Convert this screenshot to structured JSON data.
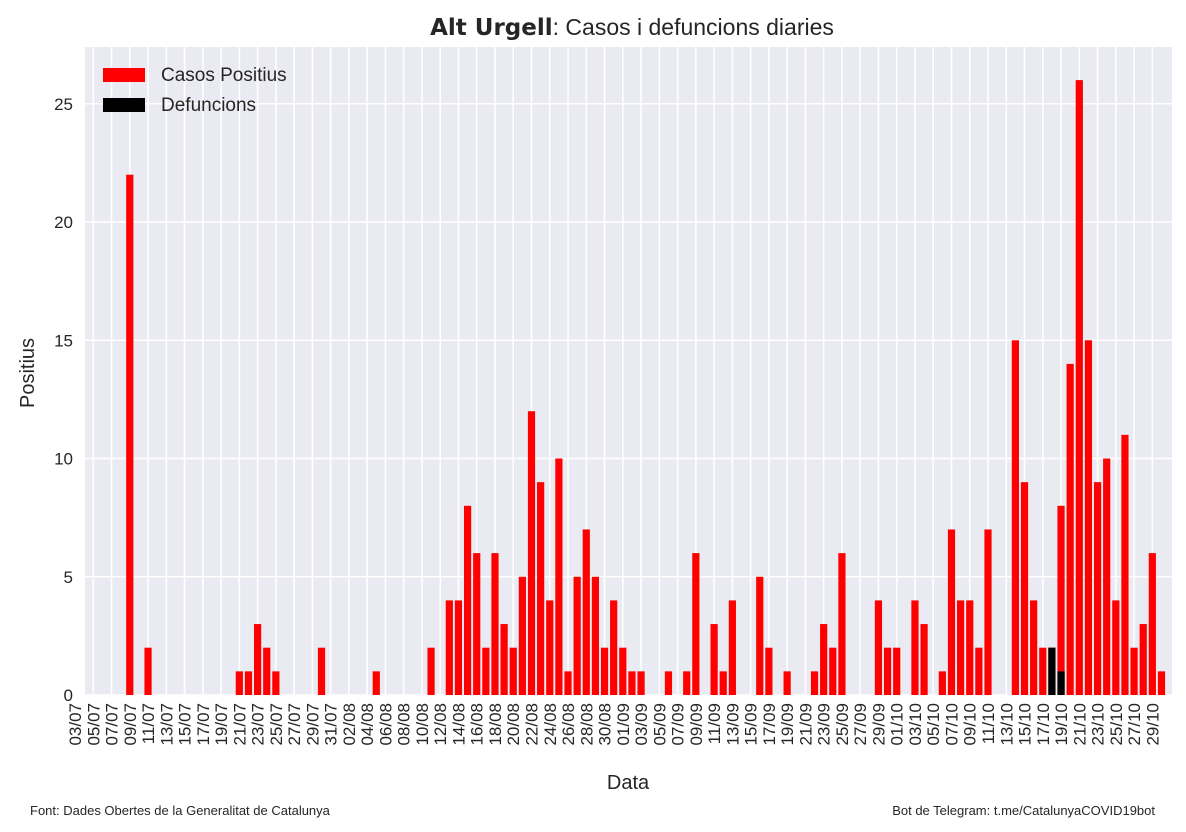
{
  "chart_data": {
    "type": "bar",
    "title": {
      "bold": "Alt Urgell",
      "text": ": Casos i defuncions diaries"
    },
    "xlabel": "Data",
    "ylabel": "Positius",
    "source": "Font: Dades Obertes de la Generalitat de Catalunya",
    "credit": "Bot de Telegram: t.me/CatalunyaCOVID19bot",
    "legend": "upper left",
    "grid": true,
    "categories": [
      "03/07",
      null,
      "05/07",
      null,
      "07/07",
      null,
      "09/07",
      null,
      "11/07",
      null,
      "13/07",
      null,
      "15/07",
      null,
      "17/07",
      null,
      "19/07",
      null,
      "21/07",
      null,
      "23/07",
      null,
      "25/07",
      null,
      "27/07",
      null,
      "29/07",
      null,
      "31/07",
      null,
      "02/08",
      null,
      "04/08",
      null,
      "06/08",
      null,
      "08/08",
      null,
      "10/08",
      null,
      "12/08",
      null,
      "14/08",
      null,
      "16/08",
      null,
      "18/08",
      null,
      "20/08",
      null,
      "22/08",
      null,
      "24/08",
      null,
      "26/08",
      null,
      "28/08",
      null,
      "30/08",
      null,
      "01/09",
      null,
      "03/09",
      null,
      "05/09",
      null,
      "07/09",
      null,
      "09/09",
      null,
      "11/09",
      null,
      "13/09",
      null,
      "15/09",
      null,
      "17/09",
      null,
      "19/09",
      null,
      "21/09",
      null,
      "23/09",
      null,
      "25/09",
      null,
      "27/09",
      null,
      "29/09",
      null,
      "01/10",
      null,
      "03/10",
      null,
      "05/10",
      null,
      "07/10",
      null,
      "09/10",
      null,
      "11/10",
      null,
      "13/10",
      null,
      "15/10",
      null,
      "17/10",
      null,
      "19/10",
      null,
      "21/10",
      null,
      "23/10",
      null,
      "25/10",
      null,
      "27/10",
      null,
      "29/10",
      null
    ],
    "series": [
      {
        "name": "Casos Positius",
        "color": "#ff0000",
        "values": [
          0,
          0,
          0,
          0,
          0,
          0,
          22,
          0,
          2,
          0,
          0,
          0,
          0,
          0,
          0,
          0,
          0,
          0,
          1,
          1,
          3,
          2,
          1,
          0,
          0,
          0,
          0,
          2,
          0,
          0,
          0,
          0,
          0,
          1,
          0,
          0,
          0,
          0,
          0,
          2,
          0,
          4,
          4,
          8,
          6,
          2,
          6,
          3,
          2,
          5,
          12,
          9,
          4,
          10,
          1,
          5,
          7,
          5,
          2,
          4,
          2,
          1,
          1,
          0,
          0,
          1,
          0,
          1,
          6,
          0,
          3,
          1,
          4,
          0,
          0,
          5,
          2,
          0,
          1,
          0,
          0,
          1,
          3,
          2,
          6,
          0,
          0,
          0,
          4,
          2,
          2,
          0,
          4,
          3,
          0,
          1,
          7,
          4,
          4,
          2,
          7,
          0,
          0,
          15,
          9,
          4,
          2,
          2,
          8,
          14,
          26,
          15,
          9,
          10,
          4,
          11,
          2,
          3,
          6,
          1
        ]
      },
      {
        "name": "Defuncions",
        "color": "#000000",
        "values": [
          0,
          0,
          0,
          0,
          0,
          0,
          0,
          0,
          0,
          0,
          0,
          0,
          0,
          0,
          0,
          0,
          0,
          0,
          0,
          0,
          0,
          0,
          0,
          0,
          0,
          0,
          0,
          0,
          0,
          0,
          0,
          0,
          0,
          0,
          0,
          0,
          0,
          0,
          0,
          0,
          0,
          0,
          0,
          0,
          0,
          0,
          0,
          0,
          0,
          0,
          0,
          0,
          0,
          0,
          0,
          0,
          0,
          0,
          0,
          0,
          0,
          0,
          0,
          0,
          0,
          0,
          0,
          0,
          0,
          0,
          0,
          0,
          0,
          0,
          0,
          0,
          0,
          0,
          0,
          0,
          0,
          0,
          0,
          0,
          0,
          0,
          0,
          0,
          0,
          0,
          0,
          0,
          0,
          0,
          0,
          0,
          0,
          0,
          0,
          0,
          0,
          0,
          0,
          0,
          0,
          0,
          0,
          2,
          1,
          0,
          0,
          0,
          0,
          0,
          0,
          0,
          0,
          0,
          0,
          0
        ]
      }
    ],
    "ylim": [
      0,
      27.4
    ],
    "yticks": [
      0,
      5,
      10,
      15,
      20,
      25
    ]
  }
}
